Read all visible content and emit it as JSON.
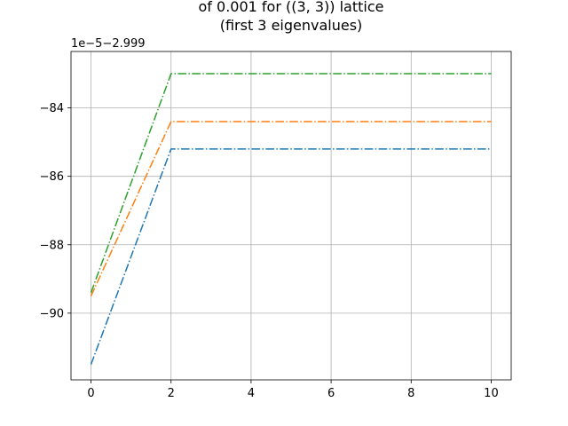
{
  "chart_data": {
    "type": "line",
    "title": [
      "of 0.001 for ((3, 3)) lattice",
      "(first 3 eigenvalues)"
    ],
    "xlabel": "",
    "ylabel": "",
    "y_offset_label": "1e−5−2.999",
    "xlim": [
      -0.5,
      10.5
    ],
    "ylim": [
      -91.95,
      -82.35
    ],
    "x_ticks": [
      0,
      2,
      4,
      6,
      8,
      10
    ],
    "x_tick_labels": [
      "0",
      "2",
      "4",
      "6",
      "8",
      "10"
    ],
    "y_ticks": [
      -90,
      -88,
      -86,
      -84
    ],
    "y_tick_labels": [
      "−90",
      "−88",
      "−86",
      "−84"
    ],
    "grid": true,
    "line_style": "dash-dot",
    "series": [
      {
        "color": "#1f77b4",
        "x": [
          0,
          2,
          10
        ],
        "y": [
          -91.5,
          -85.2,
          -85.2
        ]
      },
      {
        "color": "#ff7f0e",
        "x": [
          0,
          2,
          10
        ],
        "y": [
          -89.5,
          -84.4,
          -84.4
        ]
      },
      {
        "color": "#2ca02c",
        "x": [
          0,
          2,
          10
        ],
        "y": [
          -89.4,
          -83.0,
          -83.0
        ]
      }
    ]
  }
}
